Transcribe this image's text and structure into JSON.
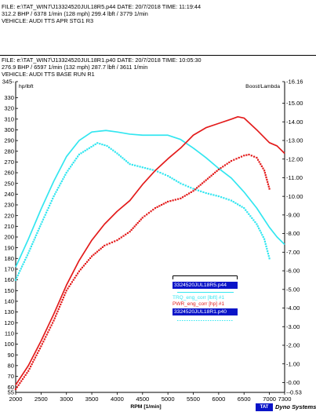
{
  "headers": [
    {
      "file_line": "FILE: e:\\TAT_WIN7\\J13324520JUL18R5.p44  DATE: 20/7/2018  TIME: 11:19:44",
      "stats_line": "312.2 BHP / 6378 1/min (128 mph)    299.4 lbft / 3779 1/min",
      "vehicle_line": "VEHICLE: AUDI TTS APR STG1 R3"
    },
    {
      "file_line": "FILE: e:\\TAT_WIN7\\J13324520JUL18R1.p40  DATE: 20/7/2018  TIME: 10:05:30",
      "stats_line": "276.9 BHP / 6597 1/min (132 mph)    287.7 lbft / 3611 1/min",
      "vehicle_line": "VEHICLE: AUDI TTS BASE RUN R1"
    }
  ],
  "legend": {
    "file_a": "3324520JUL18R5.p44",
    "file_b": "3324520JUL18R1.p40",
    "series_a": "TRQ_eng_corr  [lbft] #1",
    "series_b": "PWR_eng_corr  [hp] #1"
  },
  "brand": {
    "logo": "TAT",
    "name": "Dyno Systems"
  },
  "colors": {
    "torque": "#33e6f0",
    "power": "#e31b1b",
    "file_badge": "#0a14c8"
  },
  "chart_data": {
    "type": "line",
    "xlabel": "RPM  [1/min]",
    "ylabel_left": "hp/lbft",
    "ylabel_right": "Boost/Lambda",
    "xlim": [
      2000,
      7300
    ],
    "ylim_left": [
      55,
      345
    ],
    "ylim_right": [
      -0.53,
      16.16
    ],
    "x_ticks": [
      2000,
      2500,
      3000,
      3500,
      4000,
      4500,
      5000,
      5500,
      6000,
      6500,
      7000,
      7300
    ],
    "y_ticks_left": [
      55,
      60,
      70,
      80,
      90,
      100,
      110,
      120,
      130,
      140,
      150,
      160,
      170,
      180,
      190,
      200,
      210,
      220,
      230,
      240,
      250,
      260,
      270,
      280,
      290,
      300,
      310,
      320,
      330,
      345
    ],
    "y_tick_labels_right": [
      "-0.53",
      "0.00",
      "1.00",
      "2.00",
      "3.00",
      "4.00",
      "5.00",
      "6.00",
      "7.00",
      "8.00",
      "9.00",
      "10.00",
      "11.00",
      "12.00",
      "13.00",
      "14.00",
      "15.00",
      "16.16"
    ],
    "grid": false,
    "legend_position": "center-right",
    "series": [
      {
        "name": "TRQ_eng_corr  [lbft] #1",
        "file": "3324520JUL18R5.p44",
        "color": "#33e6f0",
        "style": "solid",
        "x": [
          2000,
          2250,
          2500,
          2750,
          3000,
          3250,
          3500,
          3779,
          4000,
          4250,
          4500,
          4750,
          5000,
          5250,
          5500,
          5750,
          6000,
          6250,
          6500,
          6750,
          7000,
          7150,
          7300
        ],
        "y": [
          172,
          198,
          226,
          252,
          275,
          290,
          298,
          299.4,
          298,
          296,
          295,
          295,
          295,
          291,
          283,
          274,
          264,
          255,
          242,
          227,
          209,
          200,
          193
        ]
      },
      {
        "name": "TRQ_eng_corr  [lbft] #1",
        "file": "3324520JUL18R1.p40",
        "color": "#33e6f0",
        "style": "dotted",
        "x": [
          2000,
          2250,
          2500,
          2750,
          3000,
          3250,
          3611,
          3800,
          4000,
          4250,
          4500,
          4750,
          5000,
          5250,
          5500,
          5750,
          6000,
          6250,
          6500,
          6750,
          6900,
          7000
        ],
        "y": [
          160,
          185,
          212,
          238,
          260,
          277,
          287.7,
          285,
          278,
          268,
          265,
          262,
          257,
          250,
          245,
          241,
          238,
          234,
          227,
          212,
          198,
          180
        ]
      },
      {
        "name": "PWR_eng_corr  [hp] #1",
        "file": "3324520JUL18R5.p44",
        "color": "#e31b1b",
        "style": "solid",
        "x": [
          2000,
          2250,
          2500,
          2750,
          3000,
          3250,
          3500,
          3750,
          4000,
          4250,
          4500,
          4750,
          5000,
          5250,
          5500,
          5750,
          6000,
          6250,
          6378,
          6500,
          6750,
          7000,
          7150,
          7300
        ],
        "y": [
          62,
          80,
          103,
          128,
          155,
          178,
          197,
          212,
          224,
          234,
          249,
          262,
          273,
          283,
          295,
          302,
          306,
          310,
          312.2,
          311,
          300,
          288,
          285,
          278
        ]
      },
      {
        "name": "PWR_eng_corr  [hp] #1",
        "file": "3324520JUL18R1.p40",
        "color": "#e31b1b",
        "style": "dotted",
        "x": [
          2000,
          2250,
          2500,
          2750,
          3000,
          3250,
          3500,
          3750,
          4000,
          4250,
          4500,
          4750,
          5000,
          5250,
          5500,
          5750,
          6000,
          6250,
          6500,
          6597,
          6750,
          6900,
          7000
        ],
        "y": [
          58,
          75,
          98,
          122,
          150,
          168,
          182,
          192,
          197,
          205,
          218,
          227,
          233,
          236,
          243,
          253,
          263,
          271,
          276,
          276.9,
          274,
          262,
          245
        ]
      }
    ]
  }
}
